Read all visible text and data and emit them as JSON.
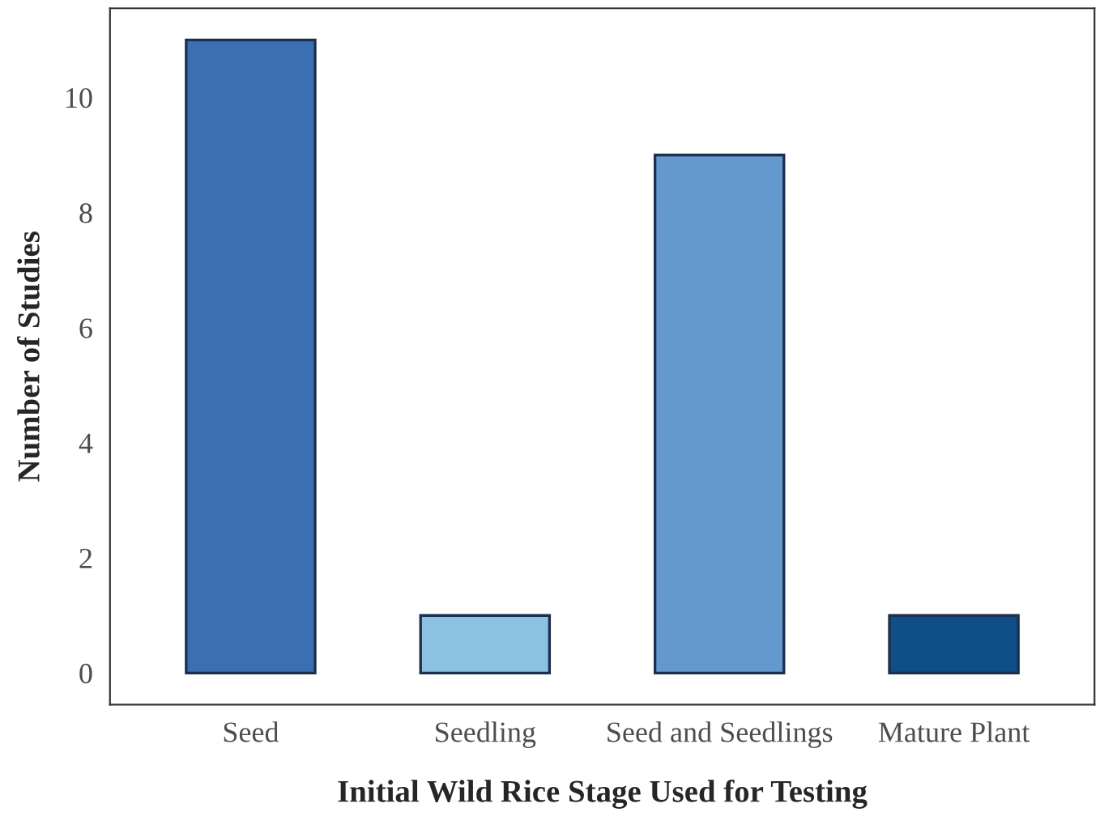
{
  "chart_data": {
    "type": "bar",
    "xlabel": "Initial Wild Rice Stage Used for Testing",
    "ylabel": "Number of Studies",
    "categories": [
      "Seed",
      "Seedling",
      "Seed and Seedlings",
      "Mature Plant"
    ],
    "values": [
      11,
      1,
      9,
      1
    ],
    "colors": [
      "#3a70b2",
      "#8dc1e2",
      "#6399cd",
      "#0f4f86"
    ],
    "ylim": [
      -0.55,
      11.55
    ],
    "yticks": [
      0,
      2,
      4,
      6,
      8,
      10
    ],
    "grid": false,
    "legend": false
  }
}
